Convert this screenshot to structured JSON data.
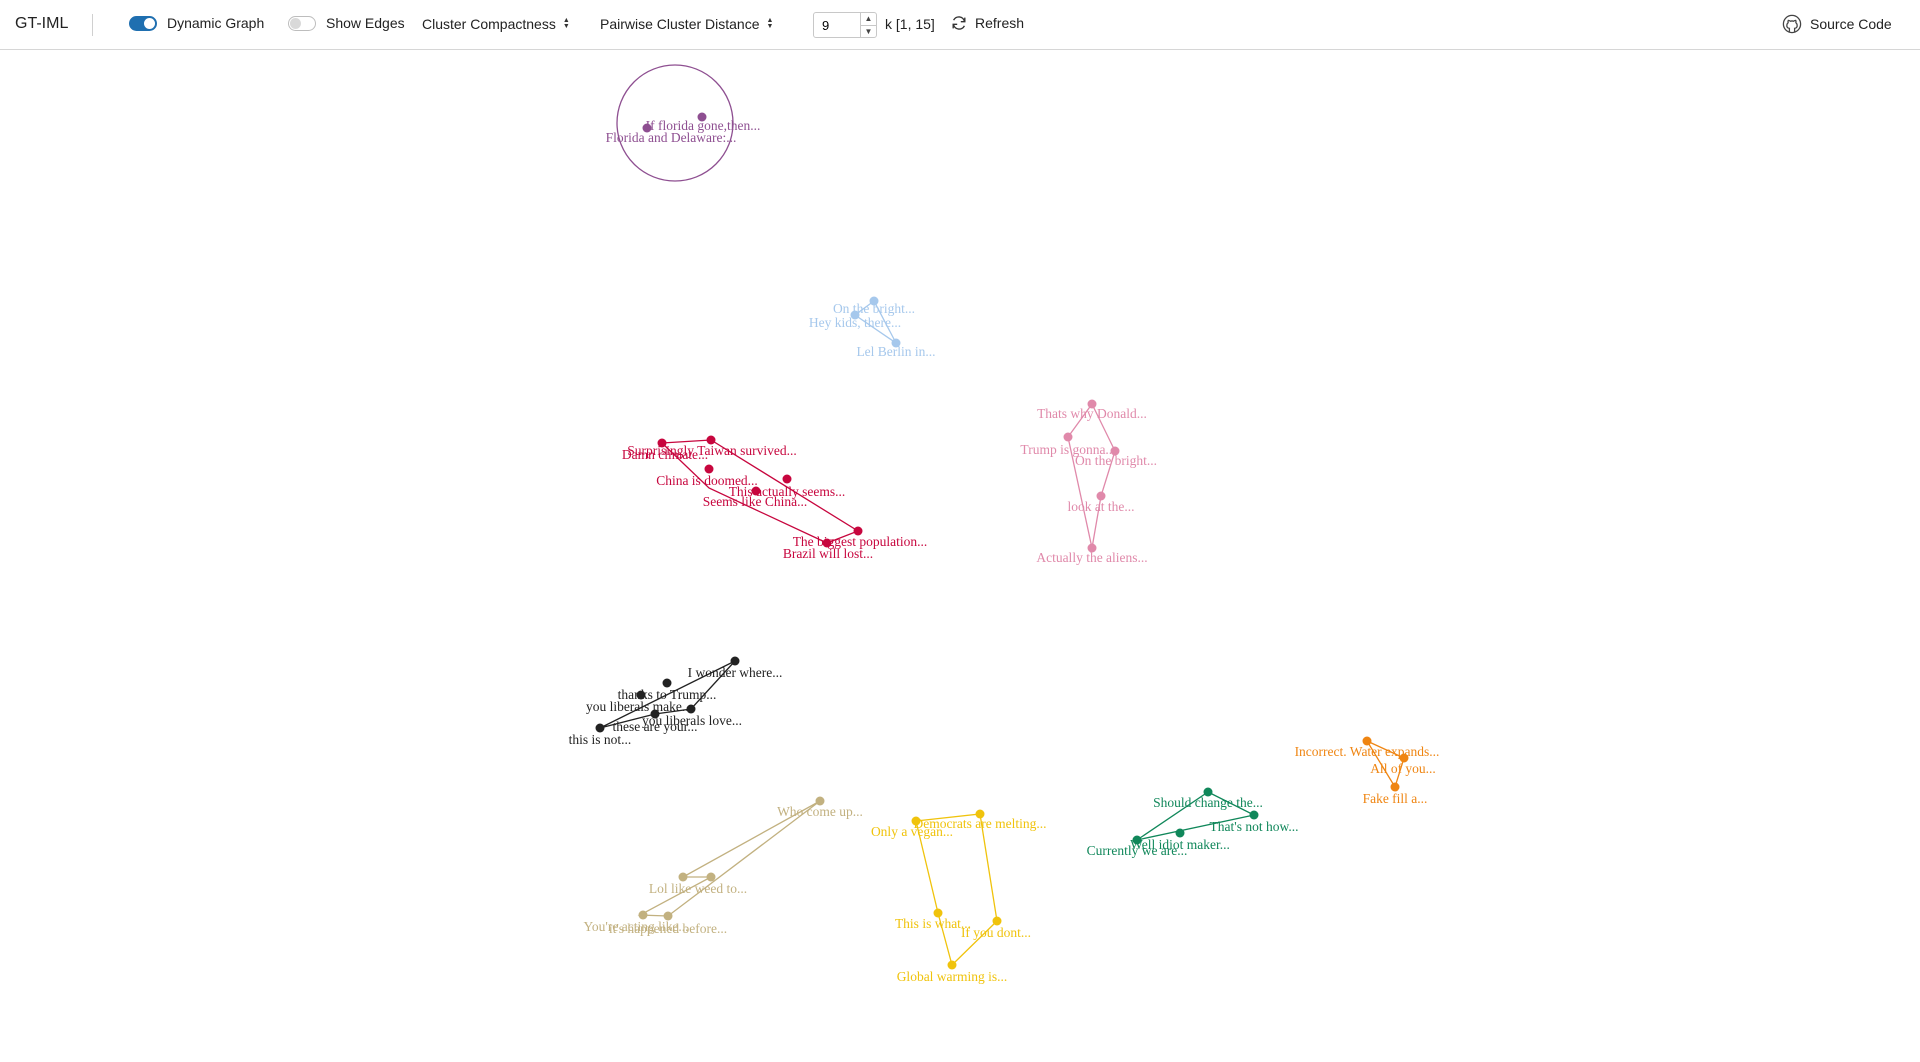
{
  "toolbar": {
    "title": "GT-IML",
    "dynamic_graph": {
      "label": "Dynamic Graph",
      "on": true
    },
    "show_edges": {
      "label": "Show Edges",
      "on": false
    },
    "cluster_compactness": "Cluster Compactness",
    "pairwise_distance": "Pairwise Cluster Distance",
    "k_value": "9",
    "k_range": "k [1, 15]",
    "refresh": "Refresh",
    "source_code": "Source Code",
    "icons": [
      "sort-icon",
      "chevron-up-icon",
      "chevron-down-icon",
      "refresh-icon",
      "github-icon"
    ]
  },
  "graph": {
    "clusters": [
      {
        "id": "purple",
        "color": "#8e4f91",
        "hull": "circle",
        "nodes": [
          {
            "label": "If florida gone,then..."
          },
          {
            "label": "Florida and Delaware:..."
          }
        ]
      },
      {
        "id": "lightblue",
        "color": "#a6c8ec",
        "nodes": [
          {
            "label": "On the bright..."
          },
          {
            "label": "Hey kids, there..."
          },
          {
            "label": "Lel Berlin in..."
          }
        ]
      },
      {
        "id": "pink",
        "color": "#e089aa",
        "nodes": [
          {
            "label": "Thats why Donald..."
          },
          {
            "label": "Trump is gonna..."
          },
          {
            "label": "On the bright..."
          },
          {
            "label": "look at the..."
          },
          {
            "label": "Actually the aliens..."
          }
        ]
      },
      {
        "id": "crimson",
        "color": "#c7063e",
        "nodes": [
          {
            "label": "Surprisingly Taiwan survived..."
          },
          {
            "label": "Damn climate..."
          },
          {
            "label": "China is doomed..."
          },
          {
            "label": "This actually seems..."
          },
          {
            "label": "Seems like China..."
          },
          {
            "label": "The biggest population..."
          },
          {
            "label": "Brazil will lost..."
          }
        ]
      },
      {
        "id": "black",
        "color": "#222222",
        "nodes": [
          {
            "label": "I wonder where..."
          },
          {
            "label": "thanks to Trump..."
          },
          {
            "label": "you liberals make..."
          },
          {
            "label": "you liberals love..."
          },
          {
            "label": "these are your..."
          },
          {
            "label": "this is not..."
          }
        ]
      },
      {
        "id": "tan",
        "color": "#c2b180",
        "nodes": [
          {
            "label": "Who come up..."
          },
          {
            "label": "Lol like weed to..."
          },
          {
            "label": "You're acting like..."
          },
          {
            "label": "it's happened before..."
          }
        ]
      },
      {
        "id": "yellow",
        "color": "#f0c30c",
        "nodes": [
          {
            "label": "Democrats are melting..."
          },
          {
            "label": "Only a vegan..."
          },
          {
            "label": "This is what..."
          },
          {
            "label": "If you dont..."
          },
          {
            "label": "Global warming is..."
          }
        ]
      },
      {
        "id": "green",
        "color": "#10875a",
        "nodes": [
          {
            "label": "Should change the..."
          },
          {
            "label": "That's not how..."
          },
          {
            "label": "Well idiot maker..."
          },
          {
            "label": "Currently we are..."
          }
        ]
      },
      {
        "id": "orange",
        "color": "#ef8512",
        "nodes": [
          {
            "label": "Incorrect. Water expands..."
          },
          {
            "label": "All of you..."
          },
          {
            "label": "Fake fill a..."
          }
        ]
      }
    ]
  }
}
